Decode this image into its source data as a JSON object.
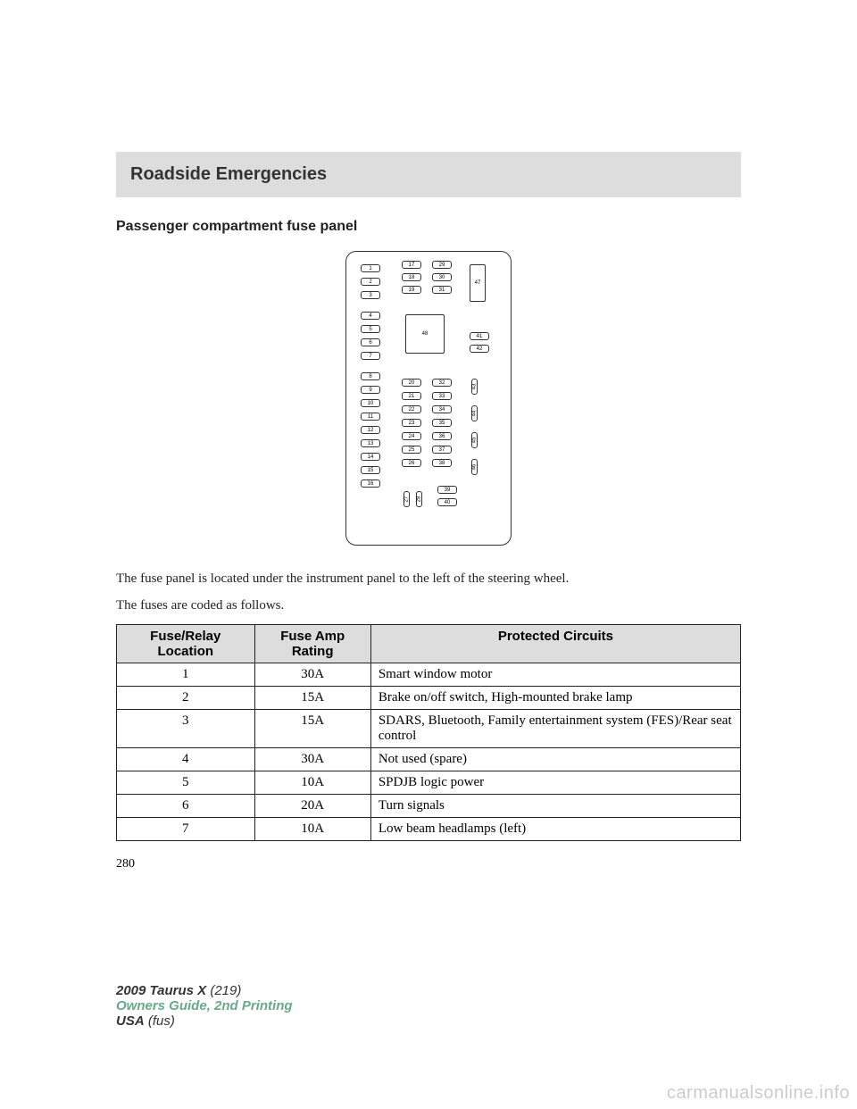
{
  "header": {
    "title": "Roadside Emergencies"
  },
  "section": {
    "title": "Passenger compartment fuse panel"
  },
  "diagram": {
    "col1": [
      "1",
      "2",
      "3",
      "4",
      "5",
      "6",
      "7",
      "8",
      "9",
      "10",
      "11",
      "12",
      "13",
      "14",
      "15",
      "16"
    ],
    "col2_top": [
      "17",
      "18",
      "19"
    ],
    "col2_mid": [
      "20",
      "21",
      "22",
      "23",
      "24",
      "25",
      "26"
    ],
    "col2_bot_v": [
      "27",
      "28"
    ],
    "col3_top": [
      "29",
      "30",
      "31"
    ],
    "col3_mid": [
      "32",
      "33",
      "34",
      "35",
      "36",
      "37",
      "38"
    ],
    "col3_bot": [
      "39",
      "40"
    ],
    "big48": "48",
    "tall47": "47",
    "col4_mid": [
      "41",
      "42"
    ],
    "col4_v": [
      "43",
      "44",
      "45",
      "46"
    ]
  },
  "body": {
    "p1": "The fuse panel is located under the instrument panel to the left of the steering wheel.",
    "p2": "The fuses are coded as follows."
  },
  "table": {
    "headers": [
      "Fuse/Relay Location",
      "Fuse Amp Rating",
      "Protected Circuits"
    ],
    "rows": [
      {
        "loc": "1",
        "amp": "30A",
        "circ": "Smart window motor"
      },
      {
        "loc": "2",
        "amp": "15A",
        "circ": "Brake on/off switch, High-mounted brake lamp"
      },
      {
        "loc": "3",
        "amp": "15A",
        "circ": "SDARS, Bluetooth, Family entertainment system (FES)/Rear seat control"
      },
      {
        "loc": "4",
        "amp": "30A",
        "circ": "Not used (spare)"
      },
      {
        "loc": "5",
        "amp": "10A",
        "circ": "SPDJB logic power"
      },
      {
        "loc": "6",
        "amp": "20A",
        "circ": "Turn signals"
      },
      {
        "loc": "7",
        "amp": "10A",
        "circ": "Low beam headlamps (left)"
      }
    ]
  },
  "page_num": "280",
  "footer": {
    "model": "2009 Taurus X",
    "num": "(219)",
    "guide": "Owners Guide, 2nd Printing",
    "usa": "USA",
    "fus": "(fus)"
  },
  "watermark": "carmanualsonline.info"
}
